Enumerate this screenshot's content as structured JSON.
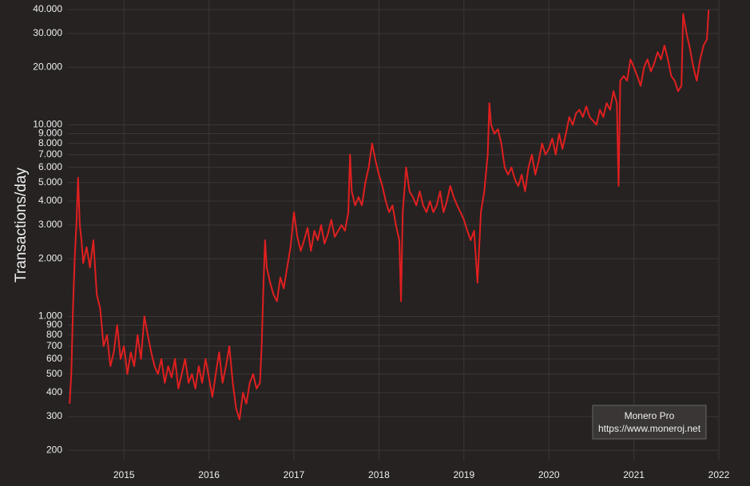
{
  "chart_data": {
    "type": "line",
    "y_label": "Transactions/day",
    "annotations": [
      "Monero Pro",
      "https://www.moneroj.net"
    ],
    "color": "#e01f1f",
    "log_y": true,
    "grid": true,
    "xlim": [
      2014.34,
      2022
    ],
    "xticks": [
      2015,
      2016,
      2017,
      2018,
      2019,
      2020,
      2021,
      2022
    ],
    "ylim": [
      177,
      44900
    ],
    "yticks": [
      200,
      300,
      400,
      500,
      600,
      700,
      800,
      900,
      {
        "value": 1000,
        "label": "1.000"
      },
      {
        "value": 2000,
        "label": "2.000"
      },
      {
        "value": 3000,
        "label": "3.000"
      },
      {
        "value": 4000,
        "label": "4.000"
      },
      {
        "value": 5000,
        "label": "5.000"
      },
      {
        "value": 6000,
        "label": "6.000"
      },
      {
        "value": 7000,
        "label": "7.000"
      },
      {
        "value": 8000,
        "label": "8.000"
      },
      {
        "value": 9000,
        "label": "9.000"
      },
      {
        "value": 10000,
        "label": "10.000"
      },
      {
        "value": 20000,
        "label": "20.000"
      },
      {
        "value": 30000,
        "label": "30.000"
      },
      {
        "value": 40000,
        "label": "40.000"
      }
    ],
    "x": [
      2014.36,
      2014.38,
      2014.4,
      2014.42,
      2014.44,
      2014.46,
      2014.48,
      2014.5,
      2014.52,
      2014.56,
      2014.6,
      2014.64,
      2014.68,
      2014.72,
      2014.76,
      2014.8,
      2014.84,
      2014.88,
      2014.92,
      2014.96,
      2015.0,
      2015.04,
      2015.08,
      2015.12,
      2015.16,
      2015.2,
      2015.24,
      2015.28,
      2015.32,
      2015.36,
      2015.4,
      2015.44,
      2015.48,
      2015.52,
      2015.56,
      2015.6,
      2015.64,
      2015.68,
      2015.72,
      2015.76,
      2015.8,
      2015.84,
      2015.88,
      2015.92,
      2015.96,
      2016.0,
      2016.04,
      2016.08,
      2016.12,
      2016.16,
      2016.2,
      2016.24,
      2016.28,
      2016.32,
      2016.36,
      2016.4,
      2016.44,
      2016.48,
      2016.52,
      2016.56,
      2016.6,
      2016.62,
      2016.64,
      2016.66,
      2016.68,
      2016.72,
      2016.76,
      2016.8,
      2016.84,
      2016.88,
      2016.92,
      2016.96,
      2017.0,
      2017.04,
      2017.08,
      2017.12,
      2017.16,
      2017.2,
      2017.24,
      2017.28,
      2017.32,
      2017.36,
      2017.4,
      2017.44,
      2017.48,
      2017.52,
      2017.56,
      2017.6,
      2017.64,
      2017.66,
      2017.68,
      2017.72,
      2017.76,
      2017.8,
      2017.84,
      2017.88,
      2017.92,
      2017.96,
      2018.0,
      2018.04,
      2018.08,
      2018.12,
      2018.16,
      2018.2,
      2018.24,
      2018.26,
      2018.28,
      2018.32,
      2018.36,
      2018.4,
      2018.44,
      2018.48,
      2018.52,
      2018.56,
      2018.6,
      2018.64,
      2018.68,
      2018.72,
      2018.76,
      2018.8,
      2018.84,
      2018.88,
      2018.92,
      2018.96,
      2019.0,
      2019.04,
      2019.08,
      2019.12,
      2019.16,
      2019.2,
      2019.24,
      2019.28,
      2019.3,
      2019.32,
      2019.36,
      2019.4,
      2019.44,
      2019.48,
      2019.52,
      2019.56,
      2019.6,
      2019.64,
      2019.68,
      2019.72,
      2019.76,
      2019.8,
      2019.84,
      2019.88,
      2019.92,
      2019.96,
      2020.0,
      2020.04,
      2020.08,
      2020.12,
      2020.16,
      2020.2,
      2020.24,
      2020.28,
      2020.32,
      2020.36,
      2020.4,
      2020.44,
      2020.48,
      2020.52,
      2020.56,
      2020.6,
      2020.64,
      2020.68,
      2020.72,
      2020.76,
      2020.8,
      2020.82,
      2020.84,
      2020.88,
      2020.92,
      2020.96,
      2021.0,
      2021.04,
      2021.08,
      2021.12,
      2021.16,
      2021.2,
      2021.24,
      2021.28,
      2021.32,
      2021.36,
      2021.4,
      2021.44,
      2021.48,
      2021.52,
      2021.56,
      2021.58,
      2021.62,
      2021.66,
      2021.7,
      2021.74,
      2021.78,
      2021.82,
      2021.86,
      2021.88
    ],
    "values": [
      350,
      500,
      1100,
      2000,
      3000,
      5300,
      3000,
      2500,
      1900,
      2300,
      1800,
      2500,
      1300,
      1100,
      700,
      800,
      550,
      650,
      900,
      600,
      700,
      500,
      650,
      550,
      800,
      600,
      1000,
      800,
      650,
      550,
      500,
      600,
      450,
      550,
      480,
      600,
      420,
      500,
      600,
      450,
      500,
      420,
      550,
      450,
      600,
      480,
      380,
      500,
      650,
      450,
      550,
      700,
      450,
      330,
      290,
      400,
      350,
      450,
      500,
      420,
      450,
      700,
      1400,
      2500,
      1800,
      1500,
      1300,
      1200,
      1600,
      1400,
      1800,
      2300,
      3500,
      2600,
      2200,
      2500,
      2900,
      2200,
      2800,
      2500,
      3000,
      2400,
      2700,
      3200,
      2600,
      2800,
      3000,
      2800,
      3500,
      7000,
      4500,
      3800,
      4200,
      3800,
      5000,
      6000,
      8000,
      6500,
      5500,
      4800,
      4000,
      3500,
      3800,
      3000,
      2500,
      1200,
      3500,
      6000,
      4500,
      4200,
      3800,
      4500,
      3800,
      3500,
      4000,
      3500,
      3800,
      4500,
      3500,
      4000,
      4800,
      4200,
      3800,
      3500,
      3200,
      2800,
      2500,
      2800,
      1500,
      3500,
      4500,
      7000,
      13000,
      10000,
      9000,
      9500,
      8000,
      6000,
      5500,
      6000,
      5200,
      4800,
      5500,
      4500,
      6000,
      7000,
      5500,
      6500,
      8000,
      7000,
      7500,
      8500,
      7000,
      9000,
      7500,
      9000,
      11000,
      10000,
      11500,
      12000,
      11000,
      12500,
      11000,
      10500,
      10000,
      12000,
      11000,
      13000,
      12000,
      15000,
      13000,
      4800,
      17000,
      18000,
      17000,
      22000,
      20000,
      18000,
      16000,
      20000,
      22000,
      19000,
      21000,
      24000,
      22000,
      26000,
      22000,
      18000,
      17000,
      15000,
      16000,
      38000,
      30000,
      25000,
      20000,
      17000,
      22000,
      26000,
      28000,
      40000
    ]
  }
}
